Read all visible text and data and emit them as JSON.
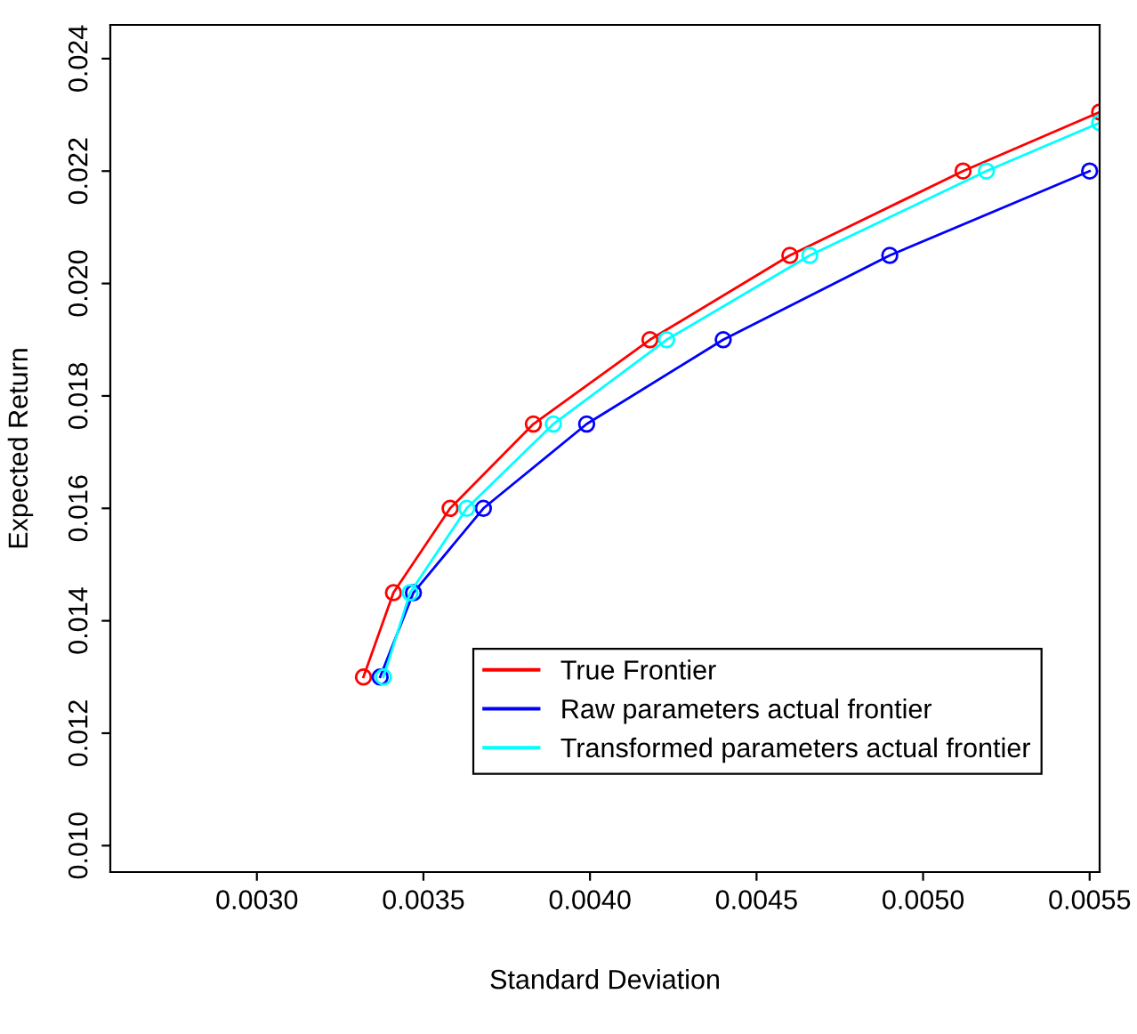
{
  "chart_data": {
    "type": "line",
    "xlabel": "Standard Deviation",
    "ylabel": "Expected Return",
    "xlim": [
      0.00256,
      0.00553
    ],
    "ylim": [
      0.00953,
      0.0246
    ],
    "xticks": [
      {
        "value": 0.003,
        "label": "0.0030"
      },
      {
        "value": 0.0035,
        "label": "0.0035"
      },
      {
        "value": 0.004,
        "label": "0.0040"
      },
      {
        "value": 0.0045,
        "label": "0.0045"
      },
      {
        "value": 0.005,
        "label": "0.0050"
      },
      {
        "value": 0.0055,
        "label": "0.0055"
      }
    ],
    "yticks": [
      {
        "value": 0.01,
        "label": "0.010"
      },
      {
        "value": 0.012,
        "label": "0.012"
      },
      {
        "value": 0.014,
        "label": "0.014"
      },
      {
        "value": 0.016,
        "label": "0.016"
      },
      {
        "value": 0.018,
        "label": "0.018"
      },
      {
        "value": 0.02,
        "label": "0.020"
      },
      {
        "value": 0.022,
        "label": "0.022"
      },
      {
        "value": 0.024,
        "label": "0.024"
      }
    ],
    "marker": "circle",
    "grid": false,
    "legend": "bottom right",
    "series": [
      {
        "name": "True Frontier",
        "color": "#ff0000",
        "x": [
          0.00332,
          0.00341,
          0.00358,
          0.00383,
          0.00418,
          0.0046,
          0.00512,
          0.00553
        ],
        "values": [
          0.013,
          0.0145,
          0.016,
          0.0175,
          0.019,
          0.0205,
          0.022,
          0.02305
        ]
      },
      {
        "name": "Raw parameters actual frontier",
        "color": "#0000ff",
        "x": [
          0.00337,
          0.00347,
          0.00368,
          0.00399,
          0.0044,
          0.0049,
          0.0055
        ],
        "values": [
          0.013,
          0.0145,
          0.016,
          0.0175,
          0.019,
          0.0205,
          0.022
        ]
      },
      {
        "name": "Transformed parameters actual frontier",
        "color": "#00ffff",
        "x": [
          0.00338,
          0.00346,
          0.00363,
          0.00389,
          0.00423,
          0.00466,
          0.00519,
          0.00553
        ],
        "values": [
          0.013,
          0.0145,
          0.016,
          0.0175,
          0.019,
          0.0205,
          0.022,
          0.02286
        ]
      }
    ]
  }
}
